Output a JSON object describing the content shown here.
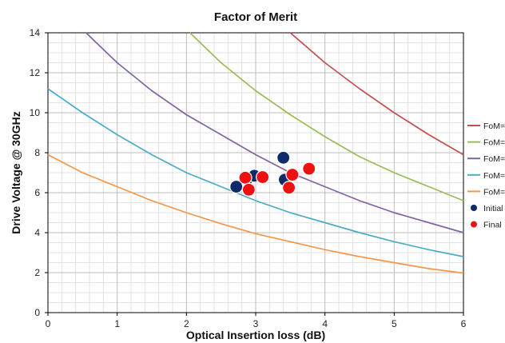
{
  "chart_data": {
    "type": "scatter",
    "title": "Factor of Merit",
    "xlabel": "Optical Insertion loss (dB)",
    "ylabel": "Drive Voltage @ 30GHz",
    "xlim": [
      0,
      6
    ],
    "ylim": [
      0,
      14
    ],
    "xticks": [
      0,
      1,
      2,
      3,
      4,
      5,
      6
    ],
    "yticks": [
      0,
      2,
      4,
      6,
      8,
      10,
      12,
      14
    ],
    "grid": true,
    "legend_position": "right",
    "curves": [
      {
        "name": "FoM=",
        "color": "#c0504d",
        "x": [
          3.5,
          4.0,
          4.5,
          5.0,
          5.5,
          6.0
        ],
        "y": [
          14.0,
          12.5,
          11.2,
          10.0,
          8.9,
          7.9
        ]
      },
      {
        "name": "FoM=",
        "color": "#9bbb59",
        "x": [
          2.05,
          2.5,
          3.0,
          3.5,
          4.0,
          4.5,
          5.0,
          5.5,
          6.0
        ],
        "y": [
          14.0,
          12.5,
          11.1,
          9.9,
          8.8,
          7.8,
          7.0,
          6.3,
          5.6
        ]
      },
      {
        "name": "FoM=",
        "color": "#8064a2",
        "x": [
          0.55,
          1.0,
          1.5,
          2.0,
          2.5,
          3.0,
          3.5,
          4.0,
          4.5,
          5.0,
          5.5,
          6.0
        ],
        "y": [
          14.0,
          12.5,
          11.1,
          9.9,
          8.9,
          7.9,
          7.0,
          6.3,
          5.6,
          5.0,
          4.5,
          4.0
        ]
      },
      {
        "name": "FoM=",
        "color": "#4bacc6",
        "x": [
          0.0,
          0.5,
          1.0,
          1.5,
          2.0,
          2.5,
          3.0,
          3.5,
          4.0,
          4.5,
          5.0,
          5.5,
          6.0
        ],
        "y": [
          11.2,
          10.0,
          8.9,
          7.9,
          7.0,
          6.3,
          5.6,
          5.0,
          4.5,
          4.0,
          3.55,
          3.15,
          2.8
        ]
      },
      {
        "name": "FoM=",
        "color": "#f79646",
        "x": [
          0.0,
          0.5,
          1.0,
          1.5,
          2.0,
          2.5,
          3.0,
          3.5,
          4.0,
          4.5,
          5.0,
          5.5,
          6.0
        ],
        "y": [
          7.9,
          7.0,
          6.3,
          5.6,
          5.0,
          4.45,
          3.95,
          3.55,
          3.15,
          2.8,
          2.5,
          2.2,
          1.98
        ]
      }
    ],
    "series": [
      {
        "name": "Initial",
        "color": "#0d2a6b",
        "x": [
          2.72,
          2.88,
          2.98,
          3.4,
          3.42
        ],
        "y": [
          6.3,
          6.7,
          6.85,
          7.75,
          6.65
        ]
      },
      {
        "name": "Final",
        "color": "#ee1111",
        "x": [
          2.85,
          2.9,
          3.1,
          3.48,
          3.53,
          3.77
        ],
        "y": [
          6.75,
          6.15,
          6.78,
          6.25,
          6.9,
          7.2
        ]
      }
    ]
  }
}
